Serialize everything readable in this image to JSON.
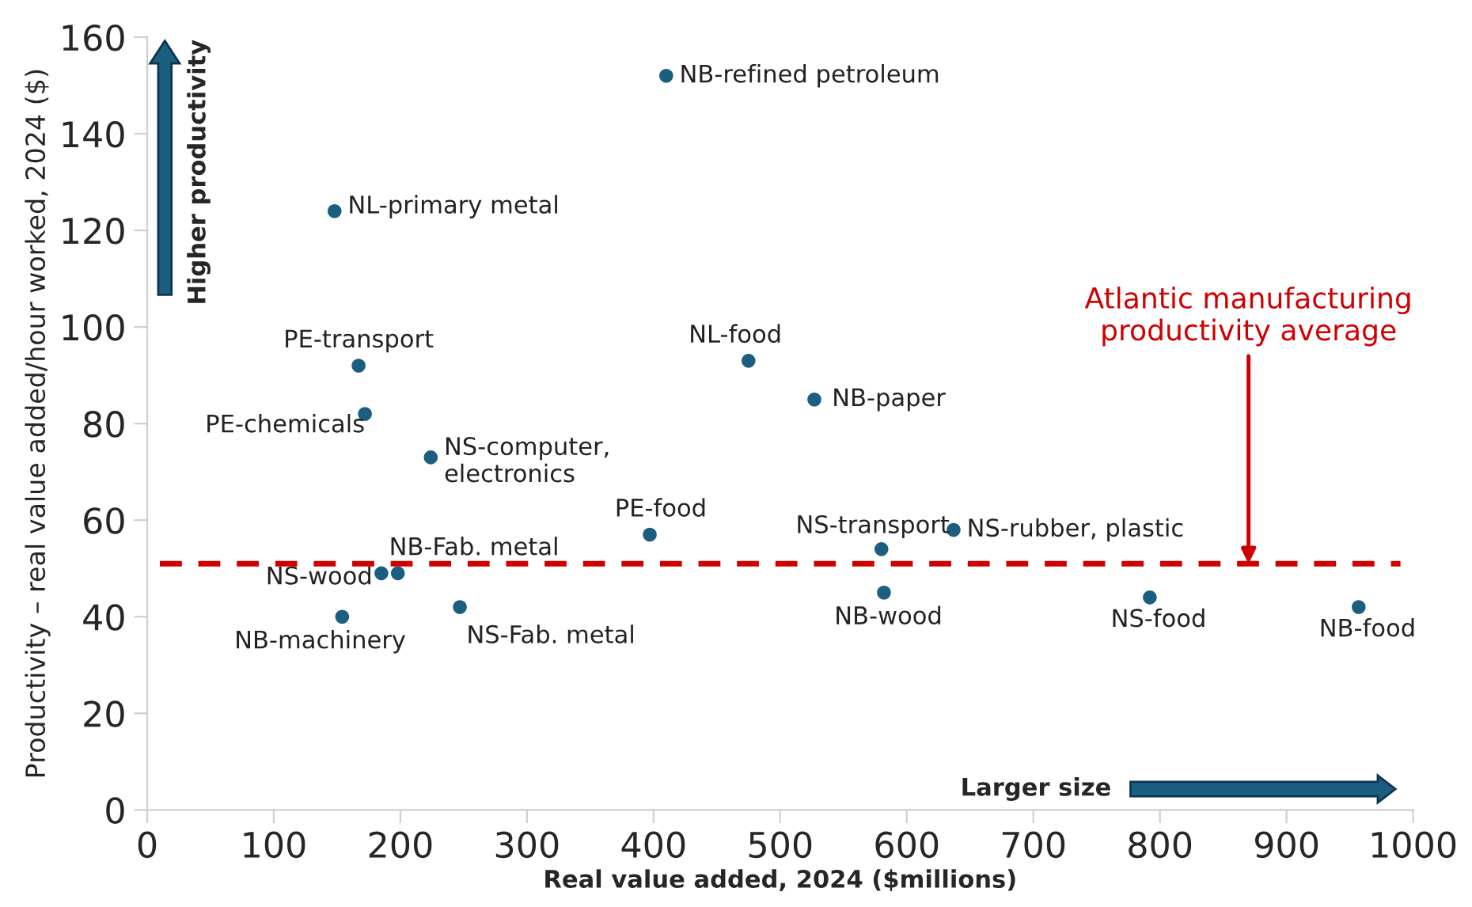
{
  "chart_data": {
    "type": "scatter",
    "xlabel": "Real value added, 2024 ($millions)",
    "ylabel": "Productivity – real value added/hour worked, 2024 ($)",
    "series": [
      {
        "color": "#1b5e80",
        "x": [
          410,
          148,
          167,
          172,
          224,
          397,
          198,
          185,
          154,
          247,
          475,
          527,
          580,
          637,
          582,
          792,
          957
        ],
        "values": [
          152,
          124,
          92,
          82,
          73,
          57,
          49,
          49,
          40,
          42,
          93,
          85,
          54,
          58,
          45,
          44,
          42
        ]
      }
    ],
    "xlim": [
      0,
      1000
    ],
    "xticks": [
      0,
      100,
      200,
      300,
      400,
      500,
      600,
      700,
      800,
      900,
      1000
    ],
    "ylim": [
      0,
      160
    ],
    "yticks": [
      0,
      20,
      40,
      60,
      80,
      100,
      120,
      140,
      160
    ],
    "marker": "circle",
    "grid": false,
    "legend": false,
    "ref_lines": [
      {
        "axis": "y",
        "value": 51,
        "label": "Atlantic manufacturing\nproductivity average",
        "color": "#d00000",
        "line_style": "dashed"
      }
    ],
    "annotations": [
      {
        "text": "NB-refined petroleum",
        "x": 410,
        "y": 152
      },
      {
        "text": "NL-primary metal",
        "x": 148,
        "y": 124
      },
      {
        "text": "PE-transport",
        "x": 167,
        "y": 92
      },
      {
        "text": "PE-chemicals",
        "x": 172,
        "y": 82
      },
      {
        "text": "NS-computer,\nelectronics",
        "x": 224,
        "y": 73
      },
      {
        "text": "PE-food",
        "x": 397,
        "y": 57
      },
      {
        "text": "NB-Fab. metal",
        "x": 198,
        "y": 49
      },
      {
        "text": "NS-wood",
        "x": 185,
        "y": 49
      },
      {
        "text": "NB-machinery",
        "x": 154,
        "y": 40
      },
      {
        "text": "NS-Fab. metal",
        "x": 247,
        "y": 42
      },
      {
        "text": "NL-food",
        "x": 475,
        "y": 93
      },
      {
        "text": "NB-paper",
        "x": 527,
        "y": 85
      },
      {
        "text": "NS-transport",
        "x": 580,
        "y": 54
      },
      {
        "text": "NS-rubber, plastic",
        "x": 637,
        "y": 58
      },
      {
        "text": "NB-wood",
        "x": 582,
        "y": 45
      },
      {
        "text": "NS-food",
        "x": 792,
        "y": 44
      },
      {
        "text": "NB-food",
        "x": 957,
        "y": 42
      },
      "Higher productivity",
      "Larger size"
    ]
  }
}
